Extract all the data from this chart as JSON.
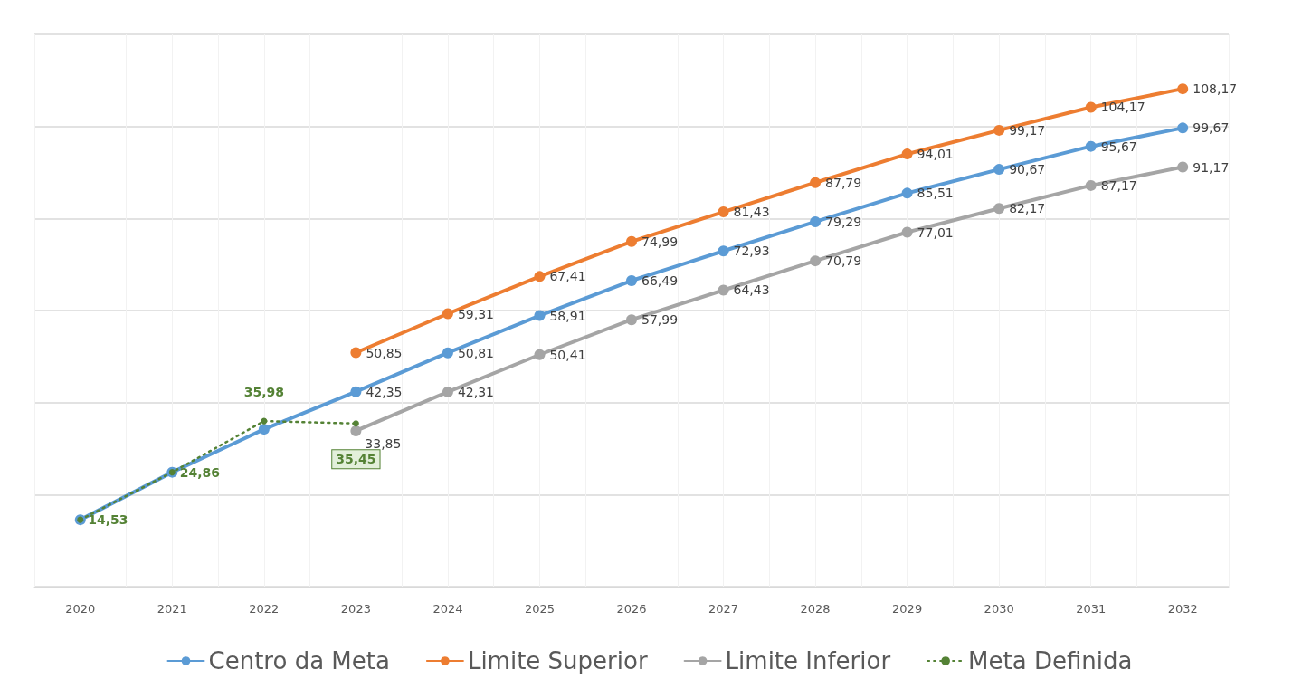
{
  "chart_data": {
    "type": "line",
    "categories": [
      "2020",
      "2021",
      "2022",
      "2023",
      "2024",
      "2025",
      "2026",
      "2027",
      "2028",
      "2029",
      "2030",
      "2031",
      "2032"
    ],
    "series": [
      {
        "name": "Centro da Meta",
        "color": "#5b9bd5",
        "line_style": "solid",
        "values": [
          14.53,
          24.86,
          34.2,
          42.35,
          50.81,
          58.91,
          66.49,
          72.93,
          79.29,
          85.51,
          90.67,
          95.67,
          99.67
        ],
        "value_labels": [
          null,
          null,
          null,
          "42,35",
          "50,81",
          "58,91",
          "66,49",
          "72,93",
          "79,29",
          "85,51",
          "90,67",
          "95,67",
          "99,67"
        ]
      },
      {
        "name": "Limite Superior",
        "color": "#ed7d31",
        "line_style": "solid",
        "values": [
          null,
          null,
          null,
          50.85,
          59.31,
          67.41,
          74.99,
          81.43,
          87.79,
          94.01,
          99.17,
          104.17,
          108.17
        ],
        "value_labels": [
          null,
          null,
          null,
          "50,85",
          "59,31",
          "67,41",
          "74,99",
          "81,43",
          "87,79",
          "94,01",
          "99,17",
          "104,17",
          "108,17"
        ]
      },
      {
        "name": "Limite Inferior",
        "color": "#a5a5a5",
        "line_style": "solid",
        "values": [
          null,
          null,
          null,
          33.85,
          42.31,
          50.41,
          57.99,
          64.43,
          70.79,
          77.01,
          82.17,
          87.17,
          91.17
        ],
        "value_labels": [
          null,
          null,
          null,
          "33,85",
          "42,31",
          "50,41",
          "57,99",
          "64,43",
          "70,79",
          "77,01",
          "82,17",
          "87,17",
          "91,17"
        ]
      },
      {
        "name": "Meta Definida",
        "color": "#548235",
        "line_style": "dotted",
        "values": [
          14.53,
          24.86,
          35.98,
          35.45,
          null,
          null,
          null,
          null,
          null,
          null,
          null,
          null,
          null
        ],
        "value_labels": [
          "14,53",
          "24,86",
          "35,98",
          "35,45",
          null,
          null,
          null,
          null,
          null,
          null,
          null,
          null,
          null
        ]
      }
    ],
    "ylim": [
      0,
      120
    ],
    "yticks": [
      {
        "value": 0,
        "label": null
      },
      {
        "value": 20,
        "label": null
      },
      {
        "value": 40,
        "label": null
      },
      {
        "value": 60,
        "label": null
      },
      {
        "value": 80,
        "label": null
      },
      {
        "value": 100,
        "label": null
      },
      {
        "value": 120,
        "label": null
      }
    ],
    "tick_labels": "x",
    "grid": true,
    "legend": "bottom",
    "marker": "circle"
  }
}
